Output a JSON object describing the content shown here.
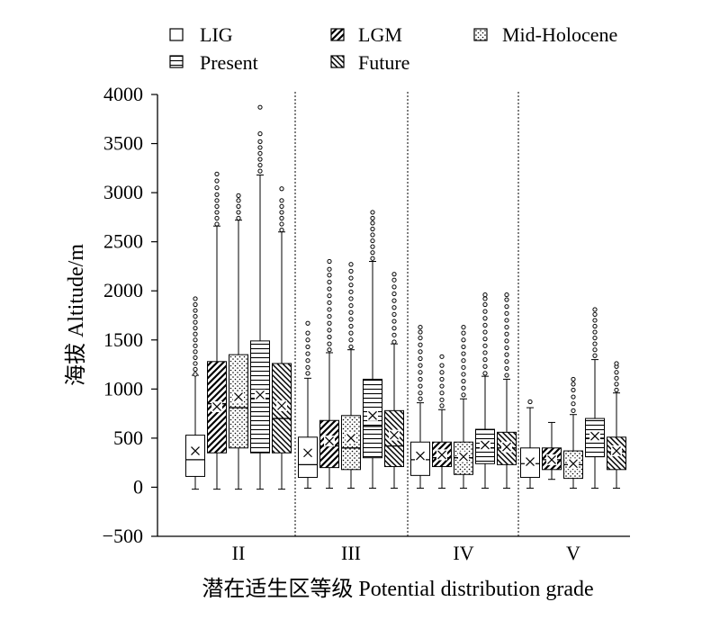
{
  "chart_data": {
    "type": "box",
    "ylabel": "海拔 Altitude/m",
    "xlabel": "潜在适生区等级 Potential distribution grade",
    "ylim": [
      -500,
      4000
    ],
    "yticks": [
      -500,
      0,
      500,
      1000,
      1500,
      2000,
      2500,
      3000,
      3500,
      4000
    ],
    "ytick_labels": [
      "−500",
      "0",
      "500",
      "1000",
      "1500",
      "2000",
      "2500",
      "3000",
      "3500",
      "4000"
    ],
    "legend": {
      "position": "top",
      "entries": [
        {
          "name": "LIG",
          "pattern": "blank"
        },
        {
          "name": "LGM",
          "pattern": "diag-up"
        },
        {
          "name": "Mid-Holocene",
          "pattern": "dots"
        },
        {
          "name": "Present",
          "pattern": "horizontal"
        },
        {
          "name": "Future",
          "pattern": "diag-down"
        }
      ]
    },
    "categories": [
      "II",
      "III",
      "IV",
      "V"
    ],
    "series_order": [
      "LIG",
      "LGM",
      "Mid-Holocene",
      "Present",
      "Future"
    ],
    "groups": [
      {
        "category": "II",
        "boxes": [
          {
            "series": "LIG",
            "min": -20,
            "q1": 110,
            "median": 280,
            "q3": 530,
            "max": 1140,
            "mean": 370,
            "outliers": [
              1150,
              1200,
              1260,
              1320,
              1380,
              1440,
              1500,
              1560,
              1620,
              1680,
              1740,
              1800,
              1860,
              1920
            ]
          },
          {
            "series": "LGM",
            "min": -20,
            "q1": 350,
            "median": 850,
            "q3": 1280,
            "max": 2660,
            "mean": 820,
            "outliers": [
              2680,
              2740,
              2800,
              2860,
              2920,
              2980,
              3050,
              3120,
              3190
            ]
          },
          {
            "series": "Mid-Holocene",
            "min": -20,
            "q1": 400,
            "median": 810,
            "q3": 1350,
            "max": 2720,
            "mean": 920,
            "outliers": [
              2740,
              2800,
              2860,
              2920,
              2970
            ]
          },
          {
            "series": "Present",
            "min": -20,
            "q1": 350,
            "median": 900,
            "q3": 1490,
            "max": 3180,
            "mean": 940,
            "outliers": [
              3220,
              3280,
              3340,
              3400,
              3460,
              3520,
              3600,
              3870
            ]
          },
          {
            "series": "Future",
            "min": -20,
            "q1": 350,
            "median": 700,
            "q3": 1260,
            "max": 2600,
            "mean": 830,
            "outliers": [
              2620,
              2680,
              2740,
              2800,
              2860,
              2920,
              3040
            ]
          }
        ]
      },
      {
        "category": "III",
        "boxes": [
          {
            "series": "LIG",
            "min": -10,
            "q1": 100,
            "median": 230,
            "q3": 510,
            "max": 1110,
            "mean": 350,
            "outliers": [
              1160,
              1220,
              1290,
              1360,
              1430,
              1500,
              1570,
              1670
            ]
          },
          {
            "series": "LGM",
            "min": -10,
            "q1": 200,
            "median": 420,
            "q3": 680,
            "max": 1370,
            "mean": 470,
            "outliers": [
              1400,
              1460,
              1530,
              1600,
              1670,
              1740,
              1810,
              1880,
              1950,
              2020,
              2090,
              2160,
              2220,
              2300
            ]
          },
          {
            "series": "Mid-Holocene",
            "min": -10,
            "q1": 180,
            "median": 400,
            "q3": 730,
            "max": 1400,
            "mean": 500,
            "outliers": [
              1430,
              1500,
              1570,
              1640,
              1710,
              1780,
              1850,
              1920,
              1990,
              2060,
              2130,
              2200,
              2270
            ]
          },
          {
            "series": "Present",
            "min": -10,
            "q1": 300,
            "median": 620,
            "q3": 1100,
            "max": 2300,
            "mean": 730,
            "outliers": [
              2330,
              2390,
              2450,
              2510,
              2570,
              2630,
              2690,
              2740,
              2800
            ]
          },
          {
            "series": "Future",
            "min": -10,
            "q1": 210,
            "median": 420,
            "q3": 780,
            "max": 1460,
            "mean": 530,
            "outliers": [
              1480,
              1550,
              1620,
              1690,
              1760,
              1830,
              1900,
              1970,
              2040,
              2110,
              2170
            ]
          }
        ]
      },
      {
        "category": "IV",
        "boxes": [
          {
            "series": "LIG",
            "min": -10,
            "q1": 120,
            "median": 280,
            "q3": 460,
            "max": 860,
            "mean": 320,
            "outliers": [
              900,
              960,
              1030,
              1100,
              1170,
              1240,
              1310,
              1380,
              1450,
              1520,
              1580,
              1630
            ]
          },
          {
            "series": "LGM",
            "min": -10,
            "q1": 210,
            "median": 300,
            "q3": 460,
            "max": 790,
            "mean": 330,
            "outliers": [
              830,
              890,
              960,
              1030,
              1100,
              1170,
              1240,
              1330
            ]
          },
          {
            "series": "Mid-Holocene",
            "min": -10,
            "q1": 130,
            "median": 300,
            "q3": 460,
            "max": 900,
            "mean": 310,
            "outliers": [
              940,
              1010,
              1080,
              1150,
              1220,
              1290,
              1360,
              1430,
              1500,
              1570,
              1630
            ]
          },
          {
            "series": "Present",
            "min": -10,
            "q1": 240,
            "median": 400,
            "q3": 590,
            "max": 1130,
            "mean": 430,
            "outliers": [
              1160,
              1230,
              1300,
              1370,
              1440,
              1510,
              1580,
              1650,
              1720,
              1790,
              1860,
              1920,
              1960
            ]
          },
          {
            "series": "Future",
            "min": -10,
            "q1": 230,
            "median": 400,
            "q3": 560,
            "max": 1100,
            "mean": 410,
            "outliers": [
              1140,
              1210,
              1280,
              1350,
              1420,
              1490,
              1560,
              1630,
              1700,
              1770,
              1840,
              1910,
              1960
            ]
          }
        ]
      },
      {
        "category": "V",
        "boxes": [
          {
            "series": "LIG",
            "min": -10,
            "q1": 100,
            "median": 240,
            "q3": 400,
            "max": 810,
            "mean": 260,
            "outliers": [
              870
            ]
          },
          {
            "series": "LGM",
            "min": 80,
            "q1": 180,
            "median": 280,
            "q3": 400,
            "max": 660,
            "mean": 280,
            "outliers": []
          },
          {
            "series": "Mid-Holocene",
            "min": -10,
            "q1": 90,
            "median": 230,
            "q3": 370,
            "max": 740,
            "mean": 240,
            "outliers": [
              780,
              850,
              920,
              990,
              1050,
              1100
            ]
          },
          {
            "series": "Present",
            "min": -10,
            "q1": 310,
            "median": 500,
            "q3": 700,
            "max": 1300,
            "mean": 520,
            "outliers": [
              1340,
              1400,
              1460,
              1520,
              1580,
              1640,
              1700,
              1760,
              1810
            ]
          },
          {
            "series": "Future",
            "min": -10,
            "q1": 180,
            "median": 360,
            "q3": 510,
            "max": 960,
            "mean": 370,
            "outliers": [
              990,
              1050,
              1110,
              1170,
              1230,
              1260
            ]
          }
        ]
      }
    ]
  }
}
